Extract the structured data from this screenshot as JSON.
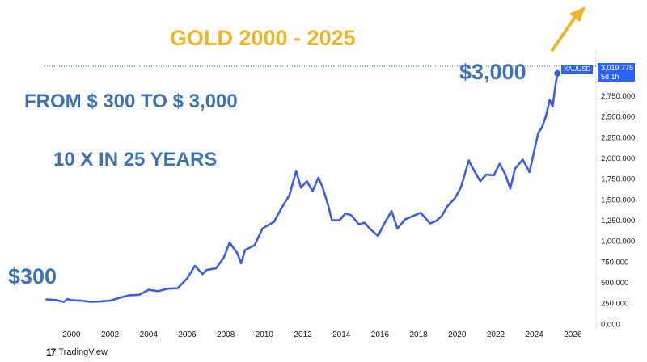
{
  "annotations": {
    "title": "GOLD 2000 - 2025",
    "line1": "FROM $ 300 TO $ 3,000",
    "line2": "10 X IN 25 YEARS",
    "end_price": "$3,000",
    "start_price": "$300"
  },
  "price_tag": {
    "symbol": "XAUUSD",
    "price": "3,019.775",
    "interval": "5d 1h"
  },
  "branding": {
    "logo_mark": "17",
    "name": "TradingView"
  },
  "colors": {
    "line": "#3b5fe0",
    "title": "#f0b429",
    "annotation": "#3b74b5",
    "arrow": "#f0b429",
    "tag": "#2962ff"
  },
  "chart_data": {
    "type": "line",
    "title": "",
    "xlabel": "",
    "ylabel": "",
    "xlim": [
      1998.6,
      2027.2
    ],
    "ylim": [
      -60,
      3300
    ],
    "x_ticks": [
      "2000",
      "2002",
      "2004",
      "2006",
      "2008",
      "2010",
      "2012",
      "2014",
      "2016",
      "2018",
      "2020",
      "2022",
      "2024",
      "2026"
    ],
    "y_ticks": [
      "0.000",
      "250.000",
      "500.000",
      "750.000",
      "1,000.000",
      "1,250.000",
      "1,500.000",
      "1,750.000",
      "2,000.000",
      "2,250.000",
      "2,500.000",
      "2,750.000"
    ],
    "grid": false,
    "legend": "none",
    "series": [
      {
        "name": "XAUUSD",
        "points": [
          [
            1998.7,
            295
          ],
          [
            1999.2,
            288
          ],
          [
            1999.6,
            265
          ],
          [
            1999.8,
            300
          ],
          [
            2000.0,
            285
          ],
          [
            2000.5,
            280
          ],
          [
            2001.0,
            265
          ],
          [
            2001.5,
            270
          ],
          [
            2002.0,
            280
          ],
          [
            2002.5,
            315
          ],
          [
            2003.0,
            345
          ],
          [
            2003.5,
            350
          ],
          [
            2004.0,
            410
          ],
          [
            2004.5,
            395
          ],
          [
            2005.0,
            425
          ],
          [
            2005.5,
            430
          ],
          [
            2006.0,
            550
          ],
          [
            2006.4,
            700
          ],
          [
            2006.8,
            600
          ],
          [
            2007.0,
            650
          ],
          [
            2007.5,
            670
          ],
          [
            2007.9,
            800
          ],
          [
            2008.2,
            980
          ],
          [
            2008.6,
            850
          ],
          [
            2008.8,
            730
          ],
          [
            2009.0,
            890
          ],
          [
            2009.5,
            950
          ],
          [
            2009.9,
            1150
          ],
          [
            2010.5,
            1230
          ],
          [
            2010.9,
            1400
          ],
          [
            2011.3,
            1550
          ],
          [
            2011.65,
            1840
          ],
          [
            2011.9,
            1640
          ],
          [
            2012.2,
            1720
          ],
          [
            2012.5,
            1600
          ],
          [
            2012.8,
            1760
          ],
          [
            2013.0,
            1660
          ],
          [
            2013.3,
            1440
          ],
          [
            2013.5,
            1250
          ],
          [
            2013.9,
            1250
          ],
          [
            2014.2,
            1330
          ],
          [
            2014.5,
            1310
          ],
          [
            2014.9,
            1200
          ],
          [
            2015.2,
            1220
          ],
          [
            2015.5,
            1140
          ],
          [
            2015.9,
            1060
          ],
          [
            2016.2,
            1200
          ],
          [
            2016.6,
            1360
          ],
          [
            2016.9,
            1150
          ],
          [
            2017.3,
            1260
          ],
          [
            2017.7,
            1300
          ],
          [
            2018.1,
            1340
          ],
          [
            2018.6,
            1210
          ],
          [
            2018.9,
            1240
          ],
          [
            2019.2,
            1300
          ],
          [
            2019.5,
            1420
          ],
          [
            2019.9,
            1520
          ],
          [
            2020.2,
            1650
          ],
          [
            2020.6,
            1970
          ],
          [
            2020.8,
            1880
          ],
          [
            2021.2,
            1720
          ],
          [
            2021.5,
            1800
          ],
          [
            2021.9,
            1790
          ],
          [
            2022.2,
            1930
          ],
          [
            2022.5,
            1800
          ],
          [
            2022.75,
            1630
          ],
          [
            2023.0,
            1870
          ],
          [
            2023.4,
            1980
          ],
          [
            2023.75,
            1830
          ],
          [
            2023.95,
            2040
          ],
          [
            2024.2,
            2300
          ],
          [
            2024.4,
            2370
          ],
          [
            2024.6,
            2500
          ],
          [
            2024.8,
            2700
          ],
          [
            2024.95,
            2620
          ],
          [
            2025.1,
            2880
          ],
          [
            2025.2,
            3020
          ]
        ]
      }
    ]
  }
}
